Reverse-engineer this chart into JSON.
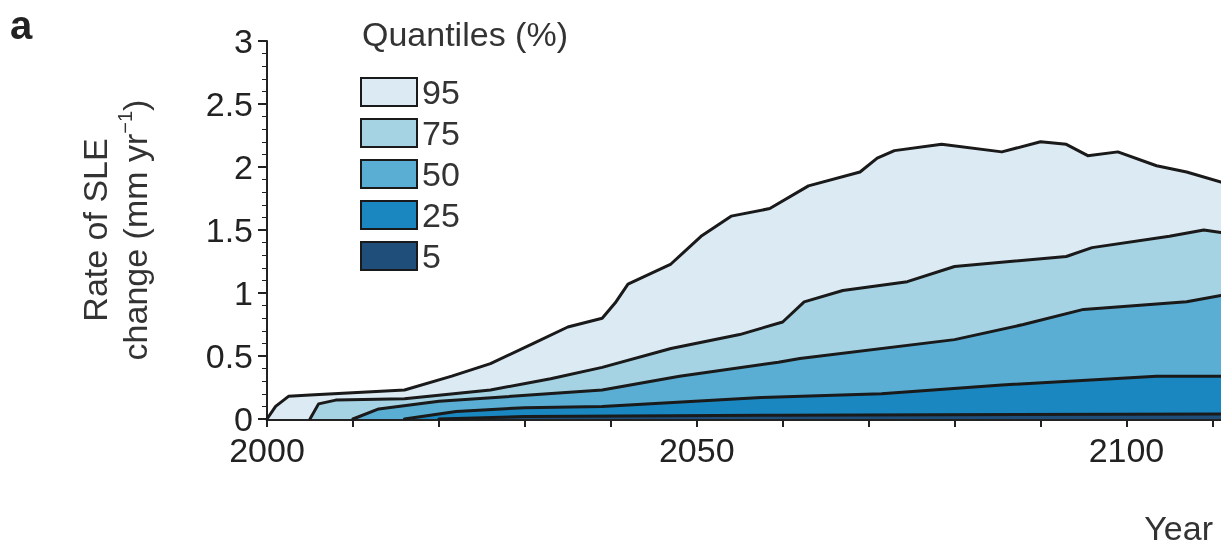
{
  "chart_data": {
    "type": "area",
    "title": "a",
    "xlabel": "Year",
    "ylabel": "Rate of SLE\nchange (mm yr$^{−1}$)",
    "legend_title": "Quantiles (%)",
    "legend": "top left",
    "marker": "none",
    "line_style": "solid",
    "grid": false,
    "xlim": [
      2000,
      2111
    ],
    "xticks": [
      2000,
      {
        "value": 2010,
        "label": null
      },
      {
        "value": 2020,
        "label": null
      },
      {
        "value": 2030,
        "label": null
      },
      {
        "value": 2040,
        "label": null
      },
      2050,
      {
        "value": 2060,
        "label": null
      },
      {
        "value": 2070,
        "label": null
      },
      {
        "value": 2080,
        "label": null
      },
      {
        "value": 2090,
        "label": null
      },
      2100,
      {
        "value": 2110,
        "label": null
      }
    ],
    "ylim": [
      0,
      3
    ],
    "yticks": [
      0,
      0.5,
      1,
      1.5,
      2,
      2.5,
      3
    ],
    "series": [
      {
        "name": "95",
        "color": "#dceaf4",
        "x": [
          2000,
          2001,
          2002.5,
          2005,
          2016,
          2021.5,
          2026,
          2031,
          2035,
          2039,
          2040.5,
          2042,
          2047,
          2050.5,
          2054,
          2058.5,
          2063,
          2069,
          2071,
          2073,
          2078.5,
          2085.5,
          2090,
          2093,
          2095.5,
          2099,
          2103.5,
          2107,
          2111
        ],
        "values": [
          0,
          0.1,
          0.18,
          0.19,
          0.23,
          0.34,
          0.44,
          0.6,
          0.73,
          0.8,
          0.92,
          1.07,
          1.23,
          1.45,
          1.61,
          1.67,
          1.85,
          1.96,
          2.07,
          2.13,
          2.18,
          2.12,
          2.2,
          2.18,
          2.09,
          2.12,
          2.01,
          1.96,
          1.88
        ]
      },
      {
        "name": "75",
        "color": "#a6d3e3",
        "x": [
          2005,
          2006,
          2008,
          2016,
          2026,
          2033,
          2039,
          2047,
          2055,
          2060,
          2062.5,
          2067,
          2074.5,
          2080,
          2093,
          2096,
          2105,
          2109,
          2111
        ],
        "values": [
          0,
          0.12,
          0.15,
          0.16,
          0.23,
          0.32,
          0.41,
          0.56,
          0.67,
          0.77,
          0.93,
          1.02,
          1.09,
          1.21,
          1.29,
          1.36,
          1.45,
          1.5,
          1.48
        ]
      },
      {
        "name": "50",
        "color": "#5aaed4",
        "x": [
          2010,
          2013,
          2020,
          2039,
          2048,
          2059.5,
          2062,
          2080,
          2088,
          2095,
          2107,
          2111
        ],
        "values": [
          0,
          0.08,
          0.14,
          0.23,
          0.34,
          0.45,
          0.48,
          0.63,
          0.75,
          0.87,
          0.93,
          0.98
        ]
      },
      {
        "name": "25",
        "color": "#1b87c1",
        "x": [
          2016,
          2022,
          2030,
          2039,
          2057.5,
          2071.5,
          2085.5,
          2103.5,
          2111
        ],
        "values": [
          0,
          0.06,
          0.09,
          0.1,
          0.17,
          0.2,
          0.27,
          0.34,
          0.34
        ]
      },
      {
        "name": "5",
        "color": "#1f4e7a",
        "x": [
          2020,
          2030,
          2060,
          2111
        ],
        "values": [
          0,
          0.02,
          0.03,
          0.04
        ]
      }
    ]
  }
}
